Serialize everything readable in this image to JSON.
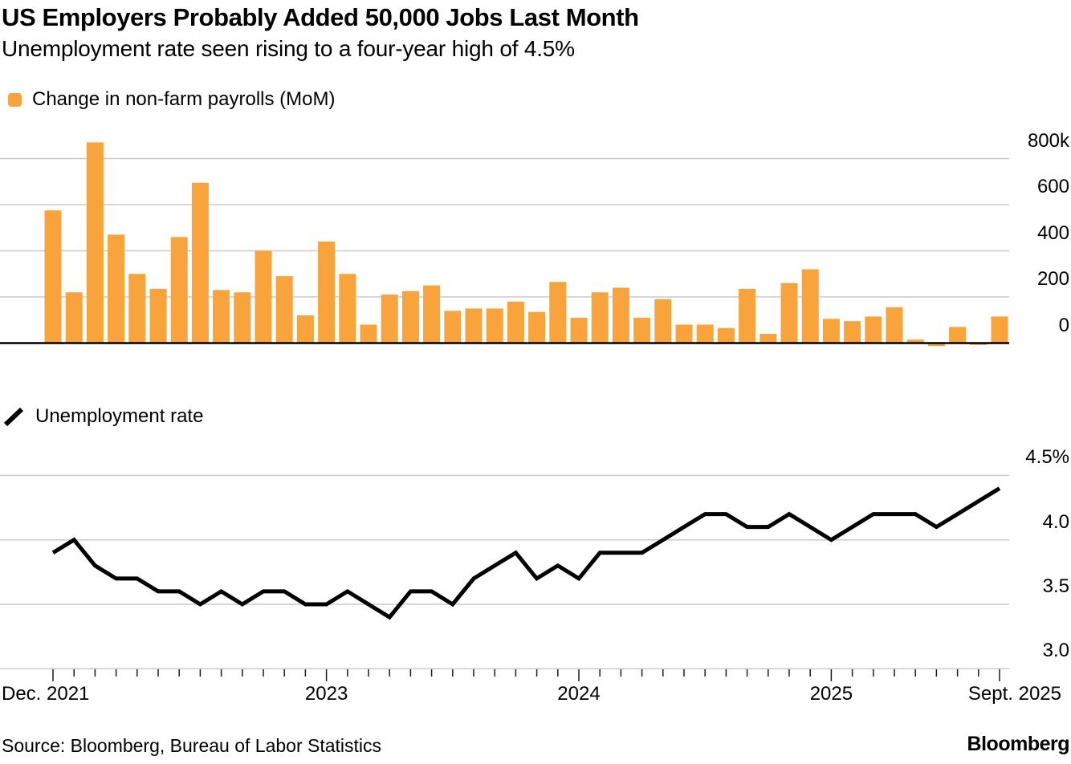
{
  "header": {
    "title": "US Employers Probably Added 50,000 Jobs Last Month",
    "subtitle": "Unemployment rate seen rising to a four-year high of 4.5%"
  },
  "legends": {
    "bars": "Change in non-farm payrolls (MoM)",
    "line": "Unemployment rate"
  },
  "footer": {
    "source": "Source: Bloomberg, Bureau of Labor Statistics",
    "brand": "Bloomberg"
  },
  "colors": {
    "bar": "#F8A33B",
    "line": "#000000",
    "grid": "#CBCBCB",
    "axis_baseline": "#000000",
    "tick": "#1A1A1A",
    "text": "#000000",
    "background": "#FFFFFF"
  },
  "x_axis": {
    "labels": [
      {
        "text": "Dec. 2021",
        "month_index": 0,
        "align": "left"
      },
      {
        "text": "2023",
        "month_index": 13,
        "align": "center"
      },
      {
        "text": "2024",
        "month_index": 25,
        "align": "center"
      },
      {
        "text": "2025",
        "month_index": 37,
        "align": "center"
      },
      {
        "text": "Sept. 2025",
        "month_index": 45,
        "align": "right"
      }
    ],
    "long_tick_indices": [
      0,
      13,
      25,
      37,
      45
    ]
  },
  "chart_data": [
    {
      "type": "bar",
      "title": "Change in non-farm payrolls (MoM)",
      "unit": "thousands of jobs",
      "bar_color": "#F8A33B",
      "grid": true,
      "legend_position": "top-left",
      "ylim": [
        -50,
        900
      ],
      "yticks": [
        {
          "value": 800,
          "label": "800k"
        },
        {
          "value": 600,
          "label": "600"
        },
        {
          "value": 400,
          "label": "400"
        },
        {
          "value": 200,
          "label": "200"
        },
        {
          "value": 0,
          "label": "0"
        }
      ],
      "categories": [
        "Dec. 2021",
        "Jan. 2022",
        "Feb. 2022",
        "March 2022",
        "April 2022",
        "May 2022",
        "June 2022",
        "July 2022",
        "Aug. 2022",
        "Sept. 2022",
        "Oct. 2022",
        "Nov. 2022",
        "Dec. 2022",
        "Jan. 2023",
        "Feb. 2023",
        "March 2023",
        "April 2023",
        "May 2023",
        "June 2023",
        "July 2023",
        "Aug. 2023",
        "Sept. 2023",
        "Oct. 2023",
        "Nov. 2023",
        "Dec. 2023",
        "Jan. 2024",
        "Feb. 2024",
        "March 2024",
        "April 2024",
        "May 2024",
        "June 2024",
        "July 2024",
        "Aug. 2024",
        "Sept. 2024",
        "Oct. 2024",
        "Nov. 2024",
        "Dec. 2024",
        "Jan. 2025",
        "Feb. 2025",
        "March 2025",
        "April 2025",
        "May 2025",
        "June 2025",
        "July 2025",
        "Aug. 2025",
        "Sept. 2025"
      ],
      "values": [
        575,
        220,
        870,
        470,
        300,
        235,
        460,
        695,
        230,
        220,
        400,
        290,
        120,
        440,
        300,
        80,
        210,
        225,
        250,
        140,
        150,
        150,
        180,
        135,
        265,
        110,
        220,
        240,
        110,
        190,
        80,
        80,
        65,
        235,
        40,
        260,
        320,
        105,
        95,
        115,
        155,
        15,
        -13,
        70,
        -8,
        115
      ]
    },
    {
      "type": "line",
      "title": "Unemployment rate",
      "unit": "percent",
      "line_color": "#000000",
      "grid": true,
      "legend_position": "top-left",
      "ylim": [
        3.0,
        4.5
      ],
      "yticks": [
        {
          "value": 4.5,
          "label": "4.5%"
        },
        {
          "value": 4.0,
          "label": "4.0"
        },
        {
          "value": 3.5,
          "label": "3.5"
        },
        {
          "value": 3.0,
          "label": "3.0"
        }
      ],
      "categories": [
        "Dec. 2021",
        "Jan. 2022",
        "Feb. 2022",
        "March 2022",
        "April 2022",
        "May 2022",
        "June 2022",
        "July 2022",
        "Aug. 2022",
        "Sept. 2022",
        "Oct. 2022",
        "Nov. 2022",
        "Dec. 2022",
        "Jan. 2023",
        "Feb. 2023",
        "March 2023",
        "April 2023",
        "May 2023",
        "June 2023",
        "July 2023",
        "Aug. 2023",
        "Sept. 2023",
        "Oct. 2023",
        "Nov. 2023",
        "Dec. 2023",
        "Jan. 2024",
        "Feb. 2024",
        "March 2024",
        "April 2024",
        "May 2024",
        "June 2024",
        "July 2024",
        "Aug. 2024",
        "Sept. 2024",
        "Oct. 2024",
        "Nov. 2024",
        "Dec. 2024",
        "Jan. 2025",
        "Feb. 2025",
        "March 2025",
        "April 2025",
        "May 2025",
        "June 2025",
        "July 2025",
        "Aug. 2025",
        "Sept. 2025"
      ],
      "values": [
        3.9,
        4.0,
        3.8,
        3.7,
        3.7,
        3.6,
        3.6,
        3.5,
        3.6,
        3.5,
        3.6,
        3.6,
        3.5,
        3.5,
        3.6,
        3.5,
        3.4,
        3.6,
        3.6,
        3.5,
        3.7,
        3.8,
        3.9,
        3.7,
        3.8,
        3.7,
        3.9,
        3.9,
        3.9,
        4.0,
        4.1,
        4.2,
        4.2,
        4.1,
        4.1,
        4.2,
        4.1,
        4.0,
        4.1,
        4.2,
        4.2,
        4.2,
        4.1,
        4.2,
        4.3,
        4.4
      ]
    }
  ]
}
